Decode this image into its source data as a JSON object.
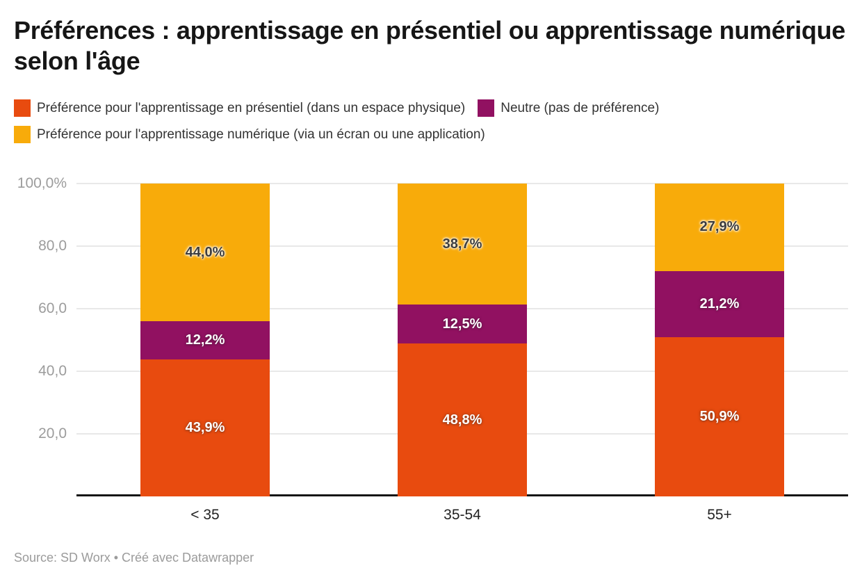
{
  "header": {
    "title": "Préférences : apprentissage en présentiel ou apprentissage numérique selon l'âge"
  },
  "chart_data": {
    "type": "bar",
    "stacked": true,
    "unit": "%",
    "title": "Préférences : apprentissage en présentiel ou apprentissage numérique selon l'âge",
    "categories": [
      "< 35",
      "35-54",
      "55+"
    ],
    "series": [
      {
        "name": "Préférence pour l'apprentissage en présentiel (dans un espace physique)",
        "color": "#e84b0f",
        "label_style": "light",
        "values": [
          43.9,
          48.8,
          50.9
        ],
        "value_labels": [
          "43,9%",
          "48,8%",
          "50,9%"
        ]
      },
      {
        "name": "Neutre (pas de préférence)",
        "color": "#911161",
        "label_style": "light",
        "values": [
          12.2,
          12.5,
          21.2
        ],
        "value_labels": [
          "12,2%",
          "12,5%",
          "21,2%"
        ]
      },
      {
        "name": "Préférence pour l'apprentissage numérique (via un écran ou une application)",
        "color": "#f8ab0a",
        "label_style": "dark",
        "values": [
          44.0,
          38.7,
          27.9
        ],
        "value_labels": [
          "44,0%",
          "38,7%",
          "27,9%"
        ]
      }
    ],
    "y_axis": {
      "max": 100,
      "ticks": [
        {
          "value": 100,
          "label": "100,0%"
        },
        {
          "value": 80,
          "label": "80,0"
        },
        {
          "value": 60,
          "label": "60,0"
        },
        {
          "value": 40,
          "label": "40,0"
        },
        {
          "value": 20,
          "label": "20,0"
        }
      ]
    },
    "grid": true,
    "legend_position": "top"
  },
  "colors": {
    "grid": "#e8e8e8",
    "baseline": "#141414",
    "axis_text": "#9c9c9c",
    "title_text": "#161616"
  },
  "footer": {
    "text": "Source: SD Worx • Créé avec Datawrapper"
  }
}
